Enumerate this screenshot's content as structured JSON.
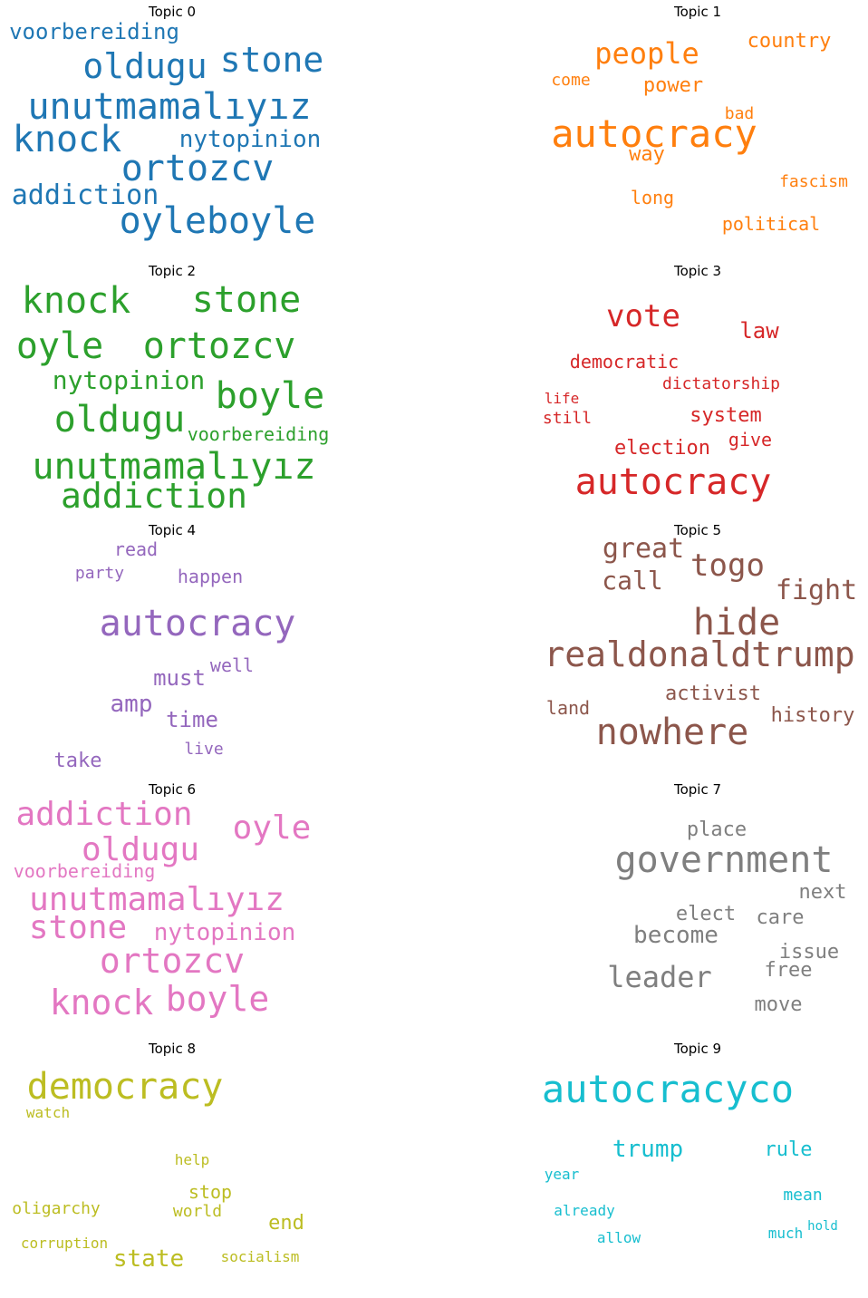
{
  "chart_data": {
    "type": "wordcloud",
    "topics": [
      {
        "title": "Topic 0",
        "color": "#1f77b4",
        "words": [
          "stone",
          "oldugu",
          "unutmamalıyız",
          "knock",
          "ortozcv",
          "addiction",
          "oyleboyle",
          "voorbereiding",
          "nytopinion"
        ]
      },
      {
        "title": "Topic 1",
        "color": "#ff7f0e",
        "words": [
          "autocracy",
          "people",
          "country",
          "power",
          "come",
          "bad",
          "way",
          "fascism",
          "long",
          "political"
        ]
      },
      {
        "title": "Topic 2",
        "color": "#2ca02c",
        "words": [
          "knock",
          "stone",
          "oyle",
          "ortozcv",
          "nytopinion",
          "boyle",
          "oldugu",
          "voorbereiding",
          "unutmamalıyız",
          "addiction"
        ]
      },
      {
        "title": "Topic 3",
        "color": "#d62728",
        "words": [
          "autocracy",
          "vote",
          "law",
          "democratic",
          "dictatorship",
          "life",
          "still",
          "system",
          "give",
          "election"
        ]
      },
      {
        "title": "Topic 4",
        "color": "#9467bd",
        "words": [
          "autocracy",
          "read",
          "party",
          "happen",
          "must",
          "well",
          "amp",
          "time",
          "take",
          "live"
        ]
      },
      {
        "title": "Topic 5",
        "color": "#8c564b",
        "words": [
          "hide",
          "realdonaldtrump",
          "nowhere",
          "great",
          "togo",
          "call",
          "fight",
          "activist",
          "land",
          "history"
        ]
      },
      {
        "title": "Topic 6",
        "color": "#e377c2",
        "words": [
          "addiction",
          "oyle",
          "oldugu",
          "voorbereiding",
          "unutmamalıyız",
          "stone",
          "nytopinion",
          "ortozcv",
          "knock",
          "boyle"
        ]
      },
      {
        "title": "Topic 7",
        "color": "#7f7f7f",
        "words": [
          "government",
          "place",
          "next",
          "elect",
          "care",
          "become",
          "issue",
          "leader",
          "free",
          "move"
        ]
      },
      {
        "title": "Topic 8",
        "color": "#bcbd22",
        "words": [
          "democracy",
          "watch",
          "help",
          "stop",
          "oligarchy",
          "world",
          "end",
          "corruption",
          "state",
          "socialism"
        ]
      },
      {
        "title": "Topic 9",
        "color": "#17becf",
        "words": [
          "autocracyco",
          "trump",
          "rule",
          "year",
          "mean",
          "already",
          "hold",
          "allow",
          "much"
        ]
      }
    ]
  }
}
